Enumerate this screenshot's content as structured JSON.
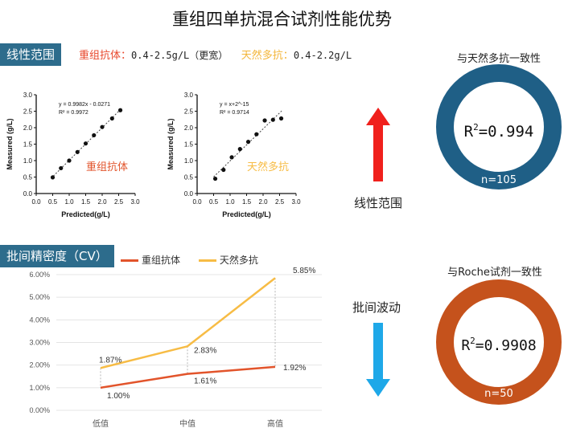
{
  "title": "重组四单抗混合试剂性能优势",
  "linear": {
    "section_label": "线性范围",
    "recombinant_label": "重组抗体：",
    "recombinant_range": "0.4-2.5g/L（更宽）",
    "natural_label": "天然多抗：",
    "natural_range": "0.4-2.2g/L"
  },
  "arrows": {
    "up_label": "线性范围",
    "down_label": "批间波动",
    "up_color": "#f0201c",
    "down_color": "#1ea8e8"
  },
  "rings": [
    {
      "title": "与天然多抗一致性",
      "r2_prefix": "R",
      "r2_sup": "2",
      "r2_value": "=0.994",
      "n": "n=105",
      "color": "#1f5f86"
    },
    {
      "title": "与Roche试剂一致性",
      "r2_prefix": "R",
      "r2_sup": "2",
      "r2_value": "=0.9908",
      "n": "n=50",
      "color": "#c5521c"
    }
  ],
  "cv": {
    "section_label": "批间精密度（CV）",
    "legend_recombinant": "重组抗体",
    "legend_natural": "天然多抗"
  },
  "colors": {
    "recombinant": "#e2542b",
    "natural": "#f7bc45",
    "accent": "#2d6c8c"
  },
  "chart_data": [
    {
      "type": "scatter",
      "xlabel": "Predicted(g/L)",
      "ylabel": "Measured (g/L)",
      "xlim": [
        0,
        3.0
      ],
      "ylim": [
        0,
        3.0
      ],
      "xticks": [
        "0.0",
        "0.5",
        "1.0",
        "1.5",
        "2.0",
        "2.5",
        "3.0"
      ],
      "yticks": [
        "0.0",
        "0.5",
        "1.0",
        "1.5",
        "2.0",
        "2.5",
        "3.0"
      ],
      "annotation": "重组抗体",
      "equation": "y = 0.9982x - 0.0271",
      "r2_label": "R² = 0.9972",
      "x": [
        0.5,
        0.75,
        1.0,
        1.25,
        1.5,
        1.75,
        2.0,
        2.3,
        2.55
      ],
      "y": [
        0.49,
        0.77,
        1.0,
        1.26,
        1.52,
        1.77,
        2.02,
        2.28,
        2.53
      ]
    },
    {
      "type": "scatter",
      "xlabel": "Predicted(g/L)",
      "ylabel": "Measured (g/L)",
      "xlim": [
        0,
        3.0
      ],
      "ylim": [
        0,
        3.0
      ],
      "xticks": [
        "0.0",
        "0.5",
        "1.0",
        "1.5",
        "2.0",
        "2.5",
        "3.0"
      ],
      "yticks": [
        "0.0",
        "0.5",
        "1.0",
        "1.5",
        "2.0",
        "2.5",
        "3.0"
      ],
      "annotation": "天然多抗",
      "equation": "y = x+2^-15",
      "r2_label": "R² = 0.9714",
      "x": [
        0.55,
        0.8,
        1.05,
        1.3,
        1.55,
        1.8,
        2.05,
        2.3,
        2.55
      ],
      "y": [
        0.45,
        0.72,
        1.1,
        1.35,
        1.57,
        1.8,
        2.22,
        2.24,
        2.28
      ]
    },
    {
      "type": "line",
      "categories": [
        "低值",
        "中值",
        "高值"
      ],
      "yticks": [
        "0.00%",
        "1.00%",
        "2.00%",
        "3.00%",
        "4.00%",
        "5.00%",
        "6.00%"
      ],
      "ylim": [
        0,
        6
      ],
      "series": [
        {
          "name": "重组抗体",
          "values": [
            1.0,
            1.61,
            1.92
          ],
          "labels": [
            "1.00%",
            "1.61%",
            "1.92%"
          ]
        },
        {
          "name": "天然多抗",
          "values": [
            1.87,
            2.83,
            5.85
          ],
          "labels": [
            "1.87%",
            "2.83%",
            "5.85%"
          ]
        }
      ]
    }
  ]
}
